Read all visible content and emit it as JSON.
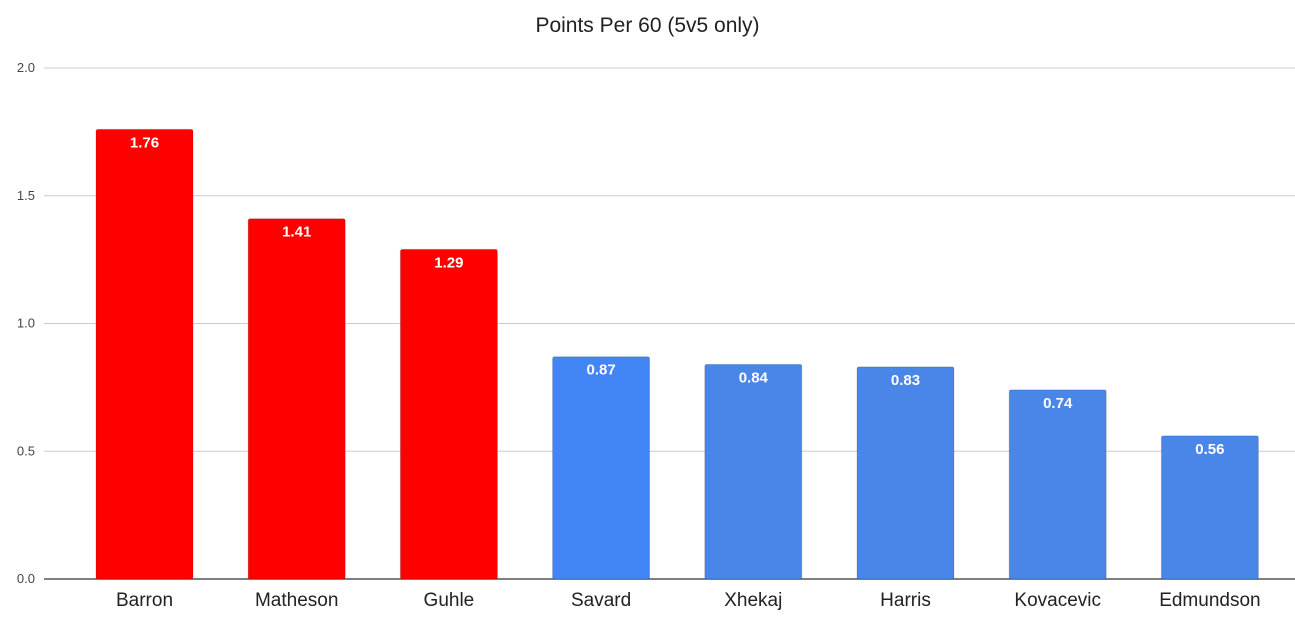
{
  "chart_data": {
    "type": "bar",
    "title": "Points Per 60 (5v5 only)",
    "xlabel": "",
    "ylabel": "",
    "categories": [
      "Barron",
      "Matheson",
      "Guhle",
      "Savard",
      "Xhekaj",
      "Harris",
      "Kovacevic",
      "Edmundson"
    ],
    "values": [
      1.76,
      1.41,
      1.29,
      0.87,
      0.84,
      0.83,
      0.74,
      0.56
    ],
    "data_labels": [
      "1.76",
      "1.41",
      "1.29",
      "0.87",
      "0.84",
      "0.83",
      "0.74",
      "0.56"
    ],
    "bar_colors": [
      "#ff0000",
      "#ff0000",
      "#ff0000",
      "#4285f4",
      "#4a86e8",
      "#4a86e8",
      "#4a86e8",
      "#4a86e8"
    ],
    "ylim": [
      0,
      2.0
    ],
    "yticks": [
      0.0,
      0.5,
      1.0,
      1.5,
      2.0
    ],
    "ytick_labels": [
      "0.0",
      "0.5",
      "1.0",
      "1.5",
      "2.0"
    ],
    "grid": true,
    "legend": "none"
  }
}
